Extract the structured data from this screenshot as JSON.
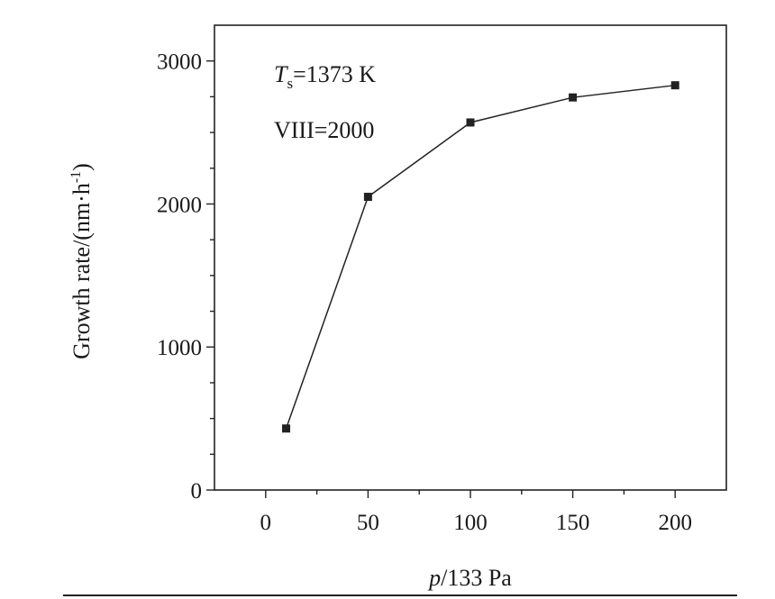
{
  "chart_data": {
    "type": "line",
    "title": "",
    "xlabel_italic": "p",
    "xlabel_rest": "/133 Pa",
    "ylabel": "Growth rate/(nm·h",
    "ylabel_sup": "-1",
    "ylabel_close": ")",
    "xlim": [
      -25,
      225
    ],
    "ylim": [
      0,
      3250
    ],
    "xticks": [
      0,
      50,
      100,
      150,
      200
    ],
    "xtick_labels": [
      "0",
      "50",
      "100",
      "150",
      "200"
    ],
    "yticks": [
      0,
      1000,
      2000,
      3000
    ],
    "ytick_labels": [
      "0",
      "1000",
      "2000",
      "3000"
    ],
    "grid": false,
    "series": [
      {
        "x": [
          10,
          50,
          100,
          150,
          200
        ],
        "y": [
          430,
          2050,
          2570,
          2745,
          2830
        ]
      }
    ],
    "annotations": {
      "ts_italic": "T",
      "ts_sub": "s",
      "ts_rest": "=1373 K",
      "viii": "VIII=2000"
    }
  }
}
